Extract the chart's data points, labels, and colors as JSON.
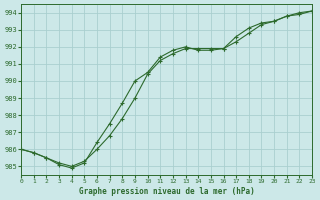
{
  "title": "Graphe pression niveau de la mer (hPa)",
  "bg_color": "#cce8e8",
  "grid_color": "#aacfcf",
  "line_color": "#2d6a2d",
  "x_min": 0,
  "x_max": 23,
  "y_min": 984.5,
  "y_max": 994.5,
  "y_ticks": [
    985,
    986,
    987,
    988,
    989,
    990,
    991,
    992,
    993,
    994
  ],
  "x_ticks": [
    0,
    1,
    2,
    3,
    4,
    5,
    6,
    7,
    8,
    9,
    10,
    11,
    12,
    13,
    14,
    15,
    16,
    17,
    18,
    19,
    20,
    21,
    22,
    23
  ],
  "line1_x": [
    0,
    1,
    2,
    3,
    4,
    5,
    6,
    7,
    8,
    9,
    10,
    11,
    12,
    13,
    14,
    15,
    16,
    17,
    18,
    19,
    20,
    21,
    22,
    23
  ],
  "line1_y": [
    986.0,
    985.8,
    985.5,
    985.2,
    985.0,
    985.3,
    986.0,
    986.8,
    987.8,
    989.0,
    990.4,
    991.2,
    991.6,
    991.9,
    991.9,
    991.9,
    991.9,
    992.3,
    992.8,
    993.3,
    993.5,
    993.8,
    993.9,
    994.1
  ],
  "line2_x": [
    0,
    1,
    2,
    3,
    4,
    5,
    6,
    7,
    8,
    9,
    10,
    11,
    12,
    13,
    14,
    15,
    16,
    17,
    18,
    19,
    20,
    21,
    22,
    23
  ],
  "line2_y": [
    986.0,
    985.8,
    985.5,
    985.1,
    984.9,
    985.2,
    986.4,
    987.5,
    988.7,
    990.0,
    990.5,
    991.4,
    991.8,
    992.0,
    991.8,
    991.8,
    991.9,
    992.6,
    993.1,
    993.4,
    993.5,
    993.8,
    994.0,
    994.1
  ]
}
